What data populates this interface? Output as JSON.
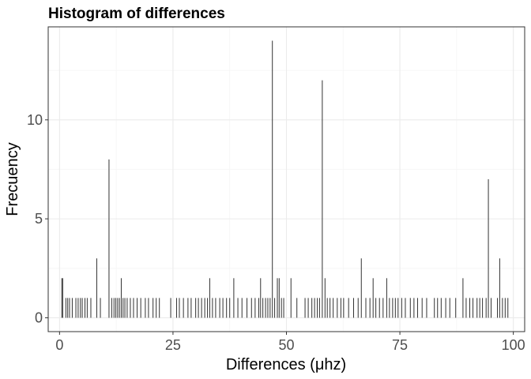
{
  "chart_data": {
    "type": "bar",
    "title": "Histogram of differences",
    "xlabel": "Differences (μhz)",
    "ylabel": "Frecuency",
    "xlim": [
      -2.5,
      102.5
    ],
    "ylim": [
      -0.7,
      14.7
    ],
    "x_ticks": [
      0,
      25,
      50,
      75,
      100
    ],
    "x_tick_labels": [
      "0",
      "25",
      "50",
      "75",
      "100"
    ],
    "y_ticks": [
      0,
      5,
      10
    ],
    "y_tick_labels": [
      "0",
      "5",
      "10"
    ],
    "grid": true,
    "bars": [
      {
        "x": 0.5,
        "y": 2
      },
      {
        "x": 0.7,
        "y": 2
      },
      {
        "x": 1.4,
        "y": 1
      },
      {
        "x": 1.8,
        "y": 1
      },
      {
        "x": 2.2,
        "y": 1
      },
      {
        "x": 2.8,
        "y": 1
      },
      {
        "x": 3.6,
        "y": 1
      },
      {
        "x": 4.1,
        "y": 1
      },
      {
        "x": 4.6,
        "y": 1
      },
      {
        "x": 5.0,
        "y": 1
      },
      {
        "x": 5.6,
        "y": 1
      },
      {
        "x": 6.1,
        "y": 1
      },
      {
        "x": 6.9,
        "y": 1
      },
      {
        "x": 8.2,
        "y": 3
      },
      {
        "x": 9.0,
        "y": 1
      },
      {
        "x": 10.9,
        "y": 8
      },
      {
        "x": 11.5,
        "y": 1
      },
      {
        "x": 12.0,
        "y": 1
      },
      {
        "x": 12.4,
        "y": 1
      },
      {
        "x": 12.8,
        "y": 1
      },
      {
        "x": 13.2,
        "y": 1
      },
      {
        "x": 13.6,
        "y": 2
      },
      {
        "x": 14.0,
        "y": 1
      },
      {
        "x": 14.4,
        "y": 1
      },
      {
        "x": 14.9,
        "y": 1
      },
      {
        "x": 15.6,
        "y": 1
      },
      {
        "x": 16.3,
        "y": 1
      },
      {
        "x": 17.1,
        "y": 1
      },
      {
        "x": 17.9,
        "y": 1
      },
      {
        "x": 18.9,
        "y": 1
      },
      {
        "x": 19.6,
        "y": 1
      },
      {
        "x": 20.6,
        "y": 1
      },
      {
        "x": 21.3,
        "y": 1
      },
      {
        "x": 22.0,
        "y": 1
      },
      {
        "x": 24.5,
        "y": 1
      },
      {
        "x": 25.8,
        "y": 1
      },
      {
        "x": 26.4,
        "y": 1
      },
      {
        "x": 27.3,
        "y": 1
      },
      {
        "x": 28.3,
        "y": 1
      },
      {
        "x": 29.0,
        "y": 1
      },
      {
        "x": 30.0,
        "y": 1
      },
      {
        "x": 30.6,
        "y": 1
      },
      {
        "x": 31.3,
        "y": 1
      },
      {
        "x": 32.0,
        "y": 1
      },
      {
        "x": 32.6,
        "y": 1
      },
      {
        "x": 33.1,
        "y": 2
      },
      {
        "x": 33.7,
        "y": 1
      },
      {
        "x": 34.4,
        "y": 1
      },
      {
        "x": 35.3,
        "y": 1
      },
      {
        "x": 36.0,
        "y": 1
      },
      {
        "x": 36.8,
        "y": 1
      },
      {
        "x": 37.5,
        "y": 1
      },
      {
        "x": 38.4,
        "y": 2
      },
      {
        "x": 39.3,
        "y": 1
      },
      {
        "x": 40.2,
        "y": 1
      },
      {
        "x": 41.3,
        "y": 1
      },
      {
        "x": 42.3,
        "y": 1
      },
      {
        "x": 43.1,
        "y": 1
      },
      {
        "x": 43.9,
        "y": 1
      },
      {
        "x": 44.3,
        "y": 2
      },
      {
        "x": 44.8,
        "y": 1
      },
      {
        "x": 45.4,
        "y": 1
      },
      {
        "x": 45.9,
        "y": 1
      },
      {
        "x": 46.4,
        "y": 1
      },
      {
        "x": 46.9,
        "y": 14
      },
      {
        "x": 47.4,
        "y": 1
      },
      {
        "x": 48.0,
        "y": 2
      },
      {
        "x": 48.4,
        "y": 2
      },
      {
        "x": 48.9,
        "y": 1
      },
      {
        "x": 49.4,
        "y": 1
      },
      {
        "x": 51.0,
        "y": 2
      },
      {
        "x": 52.3,
        "y": 1
      },
      {
        "x": 54.1,
        "y": 1
      },
      {
        "x": 54.8,
        "y": 1
      },
      {
        "x": 55.6,
        "y": 1
      },
      {
        "x": 56.2,
        "y": 1
      },
      {
        "x": 56.8,
        "y": 1
      },
      {
        "x": 57.3,
        "y": 1
      },
      {
        "x": 57.9,
        "y": 12
      },
      {
        "x": 58.5,
        "y": 2
      },
      {
        "x": 59.0,
        "y": 1
      },
      {
        "x": 59.6,
        "y": 1
      },
      {
        "x": 60.3,
        "y": 1
      },
      {
        "x": 61.2,
        "y": 1
      },
      {
        "x": 62.0,
        "y": 1
      },
      {
        "x": 62.6,
        "y": 1
      },
      {
        "x": 63.7,
        "y": 1
      },
      {
        "x": 64.8,
        "y": 1
      },
      {
        "x": 65.8,
        "y": 1
      },
      {
        "x": 66.5,
        "y": 3
      },
      {
        "x": 67.5,
        "y": 1
      },
      {
        "x": 68.4,
        "y": 1
      },
      {
        "x": 69.1,
        "y": 2
      },
      {
        "x": 69.7,
        "y": 1
      },
      {
        "x": 70.5,
        "y": 1
      },
      {
        "x": 71.3,
        "y": 1
      },
      {
        "x": 72.1,
        "y": 2
      },
      {
        "x": 72.7,
        "y": 1
      },
      {
        "x": 73.4,
        "y": 1
      },
      {
        "x": 74.0,
        "y": 1
      },
      {
        "x": 74.6,
        "y": 1
      },
      {
        "x": 75.4,
        "y": 1
      },
      {
        "x": 76.2,
        "y": 1
      },
      {
        "x": 77.3,
        "y": 1
      },
      {
        "x": 78.1,
        "y": 1
      },
      {
        "x": 78.9,
        "y": 1
      },
      {
        "x": 79.9,
        "y": 1
      },
      {
        "x": 80.9,
        "y": 1
      },
      {
        "x": 82.6,
        "y": 1
      },
      {
        "x": 83.3,
        "y": 1
      },
      {
        "x": 84.1,
        "y": 1
      },
      {
        "x": 85.1,
        "y": 1
      },
      {
        "x": 86.0,
        "y": 1
      },
      {
        "x": 87.3,
        "y": 1
      },
      {
        "x": 88.9,
        "y": 2
      },
      {
        "x": 89.6,
        "y": 1
      },
      {
        "x": 90.4,
        "y": 1
      },
      {
        "x": 91.1,
        "y": 1
      },
      {
        "x": 92.0,
        "y": 1
      },
      {
        "x": 92.6,
        "y": 1
      },
      {
        "x": 93.2,
        "y": 1
      },
      {
        "x": 94.0,
        "y": 1
      },
      {
        "x": 94.5,
        "y": 7
      },
      {
        "x": 95.1,
        "y": 1
      },
      {
        "x": 96.5,
        "y": 1
      },
      {
        "x": 97.0,
        "y": 3
      },
      {
        "x": 97.6,
        "y": 1
      },
      {
        "x": 98.2,
        "y": 1
      },
      {
        "x": 98.8,
        "y": 1
      }
    ]
  },
  "colors": {
    "bar": "#333333",
    "grid_major": "#ebebeb",
    "grid_minor": "#f5f5f5",
    "panel_border": "#333333",
    "tick_text": "#4d4d4d"
  }
}
